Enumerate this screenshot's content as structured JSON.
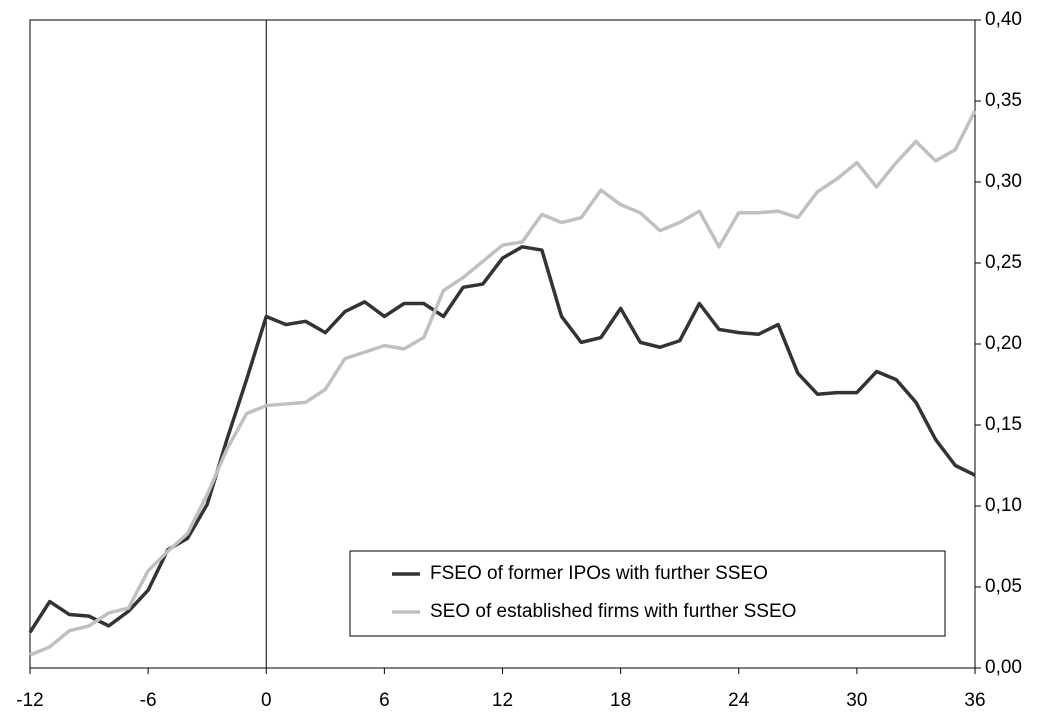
{
  "chart_data": {
    "type": "line",
    "x": [
      -12,
      -11,
      -10,
      -9,
      -8,
      -7,
      -6,
      -5,
      -4,
      -3,
      -2,
      -1,
      0,
      1,
      2,
      3,
      4,
      5,
      6,
      7,
      8,
      9,
      10,
      11,
      12,
      13,
      14,
      15,
      16,
      17,
      18,
      19,
      20,
      21,
      22,
      23,
      24,
      25,
      26,
      27,
      28,
      29,
      30,
      31,
      32,
      33,
      34,
      35,
      36
    ],
    "series": [
      {
        "name": "FSEO of former IPOs with further SSEO",
        "color": "#333333",
        "values": [
          0.022,
          0.041,
          0.033,
          0.032,
          0.026,
          0.035,
          0.048,
          0.073,
          0.08,
          0.101,
          0.141,
          0.178,
          0.217,
          0.212,
          0.214,
          0.207,
          0.22,
          0.226,
          0.217,
          0.225,
          0.225,
          0.217,
          0.235,
          0.237,
          0.253,
          0.26,
          0.258,
          0.217,
          0.201,
          0.204,
          0.222,
          0.201,
          0.198,
          0.202,
          0.225,
          0.209,
          0.207,
          0.206,
          0.212,
          0.182,
          0.169,
          0.17,
          0.17,
          0.183,
          0.178,
          0.164,
          0.141,
          0.125,
          0.119
        ]
      },
      {
        "name": "SEO of established firms with further SSEO",
        "color": "#c0c0c0",
        "values": [
          0.008,
          0.013,
          0.023,
          0.026,
          0.034,
          0.037,
          0.06,
          0.072,
          0.083,
          0.107,
          0.135,
          0.157,
          0.162,
          0.163,
          0.164,
          0.172,
          0.191,
          0.195,
          0.199,
          0.197,
          0.204,
          0.233,
          0.241,
          0.251,
          0.261,
          0.263,
          0.28,
          0.275,
          0.278,
          0.295,
          0.286,
          0.281,
          0.27,
          0.275,
          0.282,
          0.26,
          0.281,
          0.281,
          0.282,
          0.278,
          0.294,
          0.302,
          0.312,
          0.297,
          0.312,
          0.325,
          0.313,
          0.32,
          0.344
        ]
      }
    ],
    "xlim": [
      -12,
      36
    ],
    "xticks": [
      -12,
      -6,
      0,
      6,
      12,
      18,
      24,
      30,
      36
    ],
    "ylim": [
      0,
      0.4
    ],
    "yticks": [
      {
        "value": 0,
        "label": "0,00"
      },
      {
        "value": 0.05,
        "label": "0,05"
      },
      {
        "value": 0.1,
        "label": "0,10"
      },
      {
        "value": 0.15,
        "label": "0,15"
      },
      {
        "value": 0.2,
        "label": "0,20"
      },
      {
        "value": 0.25,
        "label": "0,25"
      },
      {
        "value": 0.3,
        "label": "0,30"
      },
      {
        "value": 0.35,
        "label": "0,35"
      },
      {
        "value": 0.4,
        "label": "0,40"
      }
    ],
    "y_axis_side": "right",
    "vline": 0,
    "legend": "lower right"
  }
}
